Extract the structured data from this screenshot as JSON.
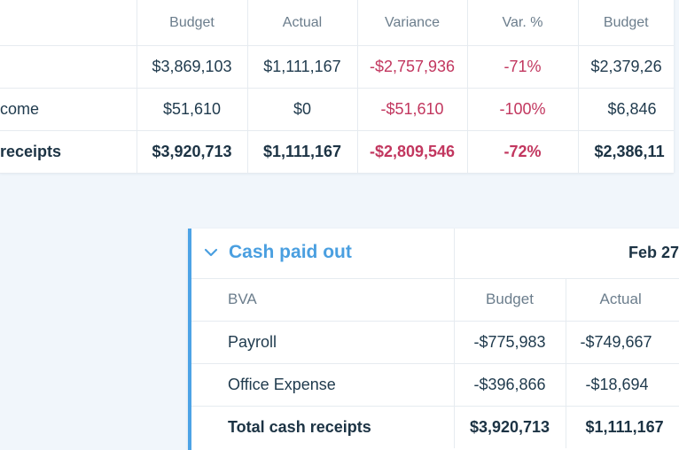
{
  "top_table": {
    "headers": [
      "Budget",
      "Actual",
      "Variance",
      "Var. %",
      "Budget"
    ],
    "rows": [
      {
        "label": "",
        "cells": [
          "$3,869,103",
          "$1,111,167",
          "-$2,757,936",
          "-71%",
          "$2,379,26"
        ]
      },
      {
        "label": "come",
        "cells": [
          "$51,610",
          "$0",
          "-$51,610",
          "-100%",
          "$6,846"
        ]
      }
    ],
    "total": {
      "label": "receipts",
      "cells": [
        "$3,920,713",
        "$1,111,167",
        "-$2,809,546",
        "-72%",
        "$2,386,11"
      ]
    }
  },
  "bottom_table": {
    "section_title": "Cash paid out",
    "chevron_icon": "chevron-down-icon",
    "date_header": "Feb 27",
    "sub_label": "BVA",
    "headers": [
      "Budget",
      "Actual"
    ],
    "rows": [
      {
        "label": "Payroll",
        "cells": [
          "-$775,983",
          "-$749,667"
        ]
      },
      {
        "label": "Office Expense",
        "cells": [
          "-$396,866",
          "-$18,694"
        ]
      }
    ],
    "total": {
      "label": "Total cash receipts",
      "cells": [
        "$3,920,713",
        "$1,111,167"
      ]
    }
  },
  "colors": {
    "accent": "#4a9fe0",
    "negative": "#c2375f",
    "text": "#1f3a4d",
    "muted": "#6b7d8c"
  }
}
